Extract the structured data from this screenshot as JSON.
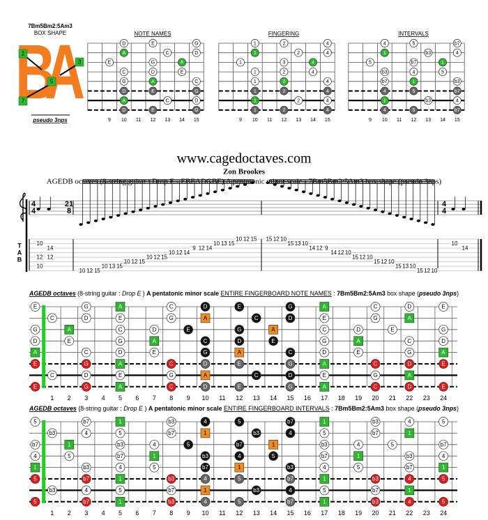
{
  "box": {
    "name": "7Bm5Bm2:5Am3",
    "label": "BOX SHAPE",
    "letters": [
      "B",
      "A"
    ],
    "markers": [
      "2",
      "3",
      "5",
      "7"
    ],
    "note": "pseudo 3nps"
  },
  "diagrams": {
    "titles": [
      "NOTE NAMES",
      "FINGERING",
      "INTERVALS"
    ],
    "fret_numbers": [
      9,
      10,
      11,
      12,
      13,
      14,
      15
    ],
    "strings": [
      {
        "frets": [
          10,
          12,
          15
        ],
        "notes": [
          "D",
          "E",
          "G"
        ],
        "fingers": [
          "1",
          "2",
          "4"
        ],
        "intervals": [
          "4",
          "5",
          "b7"
        ],
        "colors": [
          "#ffffff",
          "#ffffff",
          "#ffffff"
        ]
      },
      {
        "frets": [
          10,
          13,
          15
        ],
        "notes": [
          "A",
          "C",
          "D"
        ],
        "fingers": [
          "1",
          "2",
          "4"
        ],
        "intervals": [
          "1",
          "b3",
          "4"
        ],
        "colors": [
          "#2eb82e",
          "#ffffff",
          "#ffffff"
        ]
      },
      {
        "frets": [
          9,
          12,
          14
        ],
        "notes": [
          "E",
          "G",
          "A"
        ],
        "fingers": [
          "1",
          "3",
          "4"
        ],
        "intervals": [
          "5",
          "b7",
          "1"
        ],
        "colors": [
          "#ffffff",
          "#ffffff",
          "#2eb82e"
        ]
      },
      {
        "frets": [
          10,
          12,
          14
        ],
        "notes": [
          "C",
          "D",
          "E"
        ],
        "fingers": [
          "1",
          "2",
          "4"
        ],
        "intervals": [
          "b3",
          "4",
          "5"
        ],
        "colors": [
          "#ffffff",
          "#ffffff",
          "#ffffff"
        ]
      },
      {
        "frets": [
          10,
          12,
          15
        ],
        "notes": [
          "G",
          "A",
          "C"
        ],
        "fingers": [
          "1",
          "2",
          "4"
        ],
        "intervals": [
          "b7",
          "1",
          "b3"
        ],
        "colors": [
          "#ffffff",
          "#2eb82e",
          "#ffffff"
        ]
      },
      {
        "frets": [
          10,
          12,
          15
        ],
        "notes": [
          "D",
          "E",
          "G"
        ],
        "fingers": [
          "1",
          "2",
          "4"
        ],
        "intervals": [
          "4",
          "5",
          "b7"
        ],
        "colors": [
          "#666666",
          "#666666",
          "#666666"
        ]
      },
      {
        "frets": [
          10,
          13,
          15
        ],
        "notes": [
          "A",
          "C",
          "D"
        ],
        "fingers": [
          "1",
          "2",
          "4"
        ],
        "intervals": [
          "1",
          "b3",
          "4"
        ],
        "colors": [
          "#2eb82e",
          "#ffffff",
          "#ffffff"
        ]
      },
      {
        "frets": [
          10,
          12,
          15
        ],
        "notes": [
          "D",
          "E",
          "G"
        ],
        "fingers": [
          "1",
          "2",
          "4"
        ],
        "intervals": [
          "4",
          "5",
          "b7"
        ],
        "colors": [
          "#666666",
          "#666666",
          "#666666"
        ]
      }
    ]
  },
  "site": "www.cagedoctaves.com",
  "author": "Zon Brookes",
  "subtitle": "AGEDB octaves (8-string guitar : Drop E - EBEADGBE) A pentatonic minor scale - 7Bm5Bm2:5Am3 box shape (pseudo 3nps)",
  "notation": {
    "time_signatures": [
      [
        "4",
        "4"
      ],
      [
        "21",
        "8"
      ],
      [
        "4",
        "4"
      ]
    ],
    "tab_label": [
      "T",
      "A",
      "B"
    ],
    "columns": [
      [
        [
          2,
          10
        ],
        [
          5,
          12
        ],
        [
          7,
          10
        ]
      ],
      [
        [
          3,
          14
        ],
        [
          5,
          12
        ]
      ],
      [
        [
          8,
          10
        ]
      ],
      [
        [
          8,
          12
        ]
      ],
      [
        [
          8,
          15
        ]
      ],
      [
        [
          7,
          10
        ]
      ],
      [
        [
          7,
          13
        ]
      ],
      [
        [
          7,
          15
        ]
      ],
      [
        [
          6,
          10
        ]
      ],
      [
        [
          6,
          12
        ]
      ],
      [
        [
          6,
          15
        ]
      ],
      [
        [
          5,
          10
        ]
      ],
      [
        [
          5,
          12
        ]
      ],
      [
        [
          5,
          15
        ]
      ],
      [
        [
          4,
          10
        ]
      ],
      [
        [
          4,
          12
        ]
      ],
      [
        [
          4,
          14
        ]
      ],
      [
        [
          3,
          9
        ]
      ],
      [
        [
          3,
          12
        ]
      ],
      [
        [
          3,
          14
        ]
      ],
      [
        [
          2,
          10
        ]
      ],
      [
        [
          2,
          13
        ]
      ],
      [
        [
          2,
          15
        ]
      ],
      [
        [
          1,
          10
        ]
      ],
      [
        [
          1,
          12
        ]
      ],
      [
        [
          1,
          15
        ]
      ],
      [
        [
          1,
          15
        ]
      ],
      [
        [
          1,
          12
        ]
      ],
      [
        [
          1,
          10
        ]
      ],
      [
        [
          2,
          15
        ]
      ],
      [
        [
          2,
          13
        ]
      ],
      [
        [
          2,
          10
        ]
      ],
      [
        [
          3,
          14
        ]
      ],
      [
        [
          3,
          12
        ]
      ],
      [
        [
          3,
          9
        ]
      ],
      [
        [
          4,
          14
        ]
      ],
      [
        [
          4,
          12
        ]
      ],
      [
        [
          4,
          10
        ]
      ],
      [
        [
          5,
          15
        ]
      ],
      [
        [
          5,
          12
        ]
      ],
      [
        [
          5,
          10
        ]
      ],
      [
        [
          6,
          15
        ]
      ],
      [
        [
          6,
          12
        ]
      ],
      [
        [
          6,
          10
        ]
      ],
      [
        [
          7,
          15
        ]
      ],
      [
        [
          7,
          13
        ]
      ],
      [
        [
          7,
          10
        ]
      ],
      [
        [
          8,
          15
        ]
      ],
      [
        [
          8,
          12
        ]
      ],
      [
        [
          8,
          10
        ]
      ],
      [
        [
          2,
          10
        ]
      ],
      [
        [
          3,
          14
        ]
      ]
    ]
  },
  "fingerboard": {
    "fret_numbers": [
      1,
      2,
      3,
      4,
      5,
      6,
      7,
      8,
      9,
      10,
      11,
      12,
      13,
      14,
      15,
      16,
      17,
      18,
      19,
      20,
      21,
      22,
      23,
      24
    ],
    "strings": [
      {
        "frets": [
          0,
          3,
          5,
          8,
          10,
          12,
          15,
          17,
          20,
          22,
          24
        ],
        "notes": [
          "E",
          "G",
          "A",
          "C",
          "D",
          "E",
          "G",
          "A",
          "C",
          "D",
          "E"
        ],
        "intervals": [
          "5",
          "b7",
          "1",
          "b3",
          "4",
          "5",
          "b7",
          "1",
          "b3",
          "4",
          "5"
        ],
        "colors": [
          "#ffffff",
          "#ffffff",
          "#2eb82e",
          "#ffffff",
          "#111111",
          "#111111",
          "#111111",
          "#2eb82e",
          "#ffffff",
          "#ffffff",
          "#ffffff"
        ]
      },
      {
        "frets": [
          1,
          3,
          5,
          8,
          10,
          13,
          15,
          17,
          20,
          22
        ],
        "notes": [
          "C",
          "D",
          "E",
          "G",
          "A",
          "C",
          "D",
          "E",
          "G",
          "A"
        ],
        "intervals": [
          "b3",
          "4",
          "5",
          "b7",
          "1",
          "b3",
          "4",
          "5",
          "b7",
          "1"
        ],
        "colors": [
          "#ffffff",
          "#ffffff",
          "#ffffff",
          "#ffffff",
          "#f08c1e",
          "#111111",
          "#111111",
          "#ffffff",
          "#ffffff",
          "#2eb82e"
        ]
      },
      {
        "frets": [
          0,
          2,
          5,
          7,
          9,
          12,
          14,
          17,
          19,
          21,
          24
        ],
        "notes": [
          "G",
          "A",
          "C",
          "D",
          "E",
          "G",
          "A",
          "C",
          "D",
          "E",
          "G"
        ],
        "intervals": [
          "b7",
          "1",
          "b3",
          "4",
          "5",
          "b7",
          "1",
          "b3",
          "4",
          "5",
          "b7"
        ],
        "colors": [
          "#ffffff",
          "#2eb82e",
          "#ffffff",
          "#ffffff",
          "#111111",
          "#111111",
          "#f08c1e",
          "#ffffff",
          "#ffffff",
          "#ffffff",
          "#ffffff"
        ]
      },
      {
        "frets": [
          0,
          2,
          5,
          7,
          10,
          12,
          14,
          17,
          19,
          22,
          24
        ],
        "notes": [
          "D",
          "E",
          "G",
          "A",
          "C",
          "D",
          "E",
          "G",
          "A",
          "C",
          "D"
        ],
        "intervals": [
          "4",
          "5",
          "b7",
          "1",
          "b3",
          "4",
          "5",
          "b7",
          "1",
          "b3",
          "4"
        ],
        "colors": [
          "#ffffff",
          "#ffffff",
          "#ffffff",
          "#2eb82e",
          "#111111",
          "#111111",
          "#111111",
          "#ffffff",
          "#2eb82e",
          "#ffffff",
          "#ffffff"
        ]
      },
      {
        "frets": [
          0,
          3,
          5,
          7,
          10,
          12,
          15,
          17,
          19,
          22,
          24
        ],
        "notes": [
          "A",
          "C",
          "D",
          "E",
          "G",
          "A",
          "C",
          "D",
          "E",
          "G",
          "A"
        ],
        "intervals": [
          "1",
          "b3",
          "4",
          "5",
          "b7",
          "1",
          "b3",
          "4",
          "5",
          "b7",
          "1"
        ],
        "colors": [
          "#2eb82e",
          "#ffffff",
          "#ffffff",
          "#ffffff",
          "#111111",
          "#f08c1e",
          "#111111",
          "#ffffff",
          "#ffffff",
          "#ffffff",
          "#2eb82e"
        ]
      },
      {
        "frets": [
          0,
          3,
          5,
          8,
          10,
          12,
          15,
          17,
          20,
          22,
          24
        ],
        "notes": [
          "E",
          "G",
          "A",
          "C",
          "D",
          "E",
          "G",
          "A",
          "C",
          "D",
          "E"
        ],
        "intervals": [
          "5",
          "b7",
          "1",
          "b3",
          "4",
          "5",
          "b7",
          "1",
          "b3",
          "4",
          "5"
        ],
        "colors": [
          "#e01b1b",
          "#e01b1b",
          "#2eb82e",
          "#e01b1b",
          "#666666",
          "#666666",
          "#666666",
          "#2eb82e",
          "#e01b1b",
          "#e01b1b",
          "#e01b1b"
        ]
      },
      {
        "frets": [
          1,
          3,
          5,
          8,
          10,
          13,
          15,
          17,
          20,
          22
        ],
        "notes": [
          "C",
          "D",
          "E",
          "G",
          "A",
          "C",
          "D",
          "E",
          "G",
          "A"
        ],
        "intervals": [
          "b3",
          "4",
          "5",
          "b7",
          "1",
          "b3",
          "4",
          "5",
          "b7",
          "1"
        ],
        "colors": [
          "#ffffff",
          "#ffffff",
          "#ffffff",
          "#ffffff",
          "#f08c1e",
          "#111111",
          "#111111",
          "#ffffff",
          "#ffffff",
          "#2eb82e"
        ]
      },
      {
        "frets": [
          0,
          3,
          5,
          8,
          10,
          12,
          15,
          17,
          20,
          22,
          24
        ],
        "notes": [
          "E",
          "G",
          "A",
          "C",
          "D",
          "E",
          "G",
          "A",
          "C",
          "D",
          "E"
        ],
        "intervals": [
          "5",
          "b7",
          "1",
          "b3",
          "4",
          "5",
          "b7",
          "1",
          "b3",
          "4",
          "5"
        ],
        "colors": [
          "#e01b1b",
          "#e01b1b",
          "#2eb82e",
          "#e01b1b",
          "#666666",
          "#666666",
          "#666666",
          "#2eb82e",
          "#e01b1b",
          "#e01b1b",
          "#e01b1b"
        ]
      }
    ]
  },
  "boards": [
    {
      "title_parts": [
        {
          "text": "AGEDB octaves",
          "style": "bold-italic-underline"
        },
        {
          "text": " (8-string guitar : ",
          "style": "normal"
        },
        {
          "text": "Drop E",
          "style": "italic"
        },
        {
          "text": " ) ",
          "style": "normal"
        },
        {
          "text": "A pentatonic minor scale ",
          "style": "bold"
        },
        {
          "text": "ENTIRE FINGERBOARD NOTE NAMES",
          "style": "underline"
        },
        {
          "text": " : ",
          "style": "normal"
        },
        {
          "text": "7Bm5Bm2:5Am3",
          "style": "bold"
        },
        {
          "text": " box shape (",
          "style": "normal"
        },
        {
          "text": "pseudo 3nps",
          "style": "bold-italic"
        },
        {
          "text": ")",
          "style": "normal"
        }
      ]
    },
    {
      "title_parts": [
        {
          "text": "AGEDB octaves",
          "style": "bold-italic-underline"
        },
        {
          "text": " (8-string guitar : ",
          "style": "normal"
        },
        {
          "text": "Drop E",
          "style": "italic"
        },
        {
          "text": " ) ",
          "style": "normal"
        },
        {
          "text": "A pentatonic minor scale ",
          "style": "bold"
        },
        {
          "text": "ENTIRE FINGERBOARD INTERVALS",
          "style": "underline"
        },
        {
          "text": " : ",
          "style": "normal"
        },
        {
          "text": "7Bm5Bm2:5Am3",
          "style": "bold"
        },
        {
          "text": " box shape (",
          "style": "normal"
        },
        {
          "text": "pseudo 3nps",
          "style": "bold-italic"
        },
        {
          "text": ")",
          "style": "normal"
        }
      ]
    }
  ]
}
